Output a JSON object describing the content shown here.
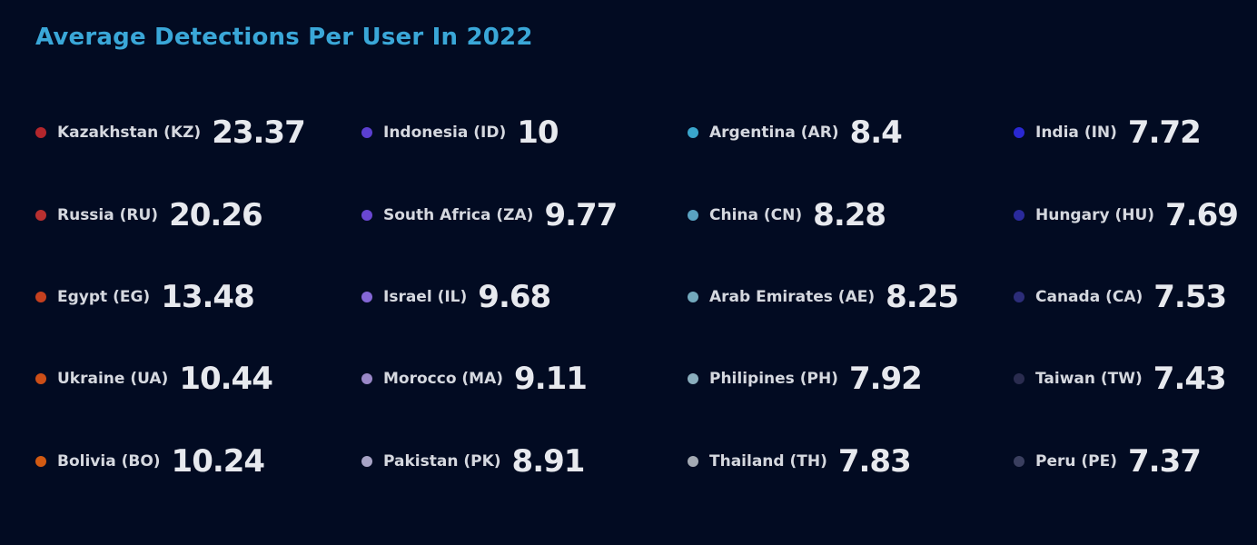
{
  "title": "Average Detections Per User In 2022",
  "chart_data": {
    "type": "table",
    "title": "Average Detections Per User In 2022",
    "entries": [
      {
        "label": "Kazakhstan (KZ)",
        "value": "23.37",
        "color": "#b3262c"
      },
      {
        "label": "Russia (RU)",
        "value": "20.26",
        "color": "#b83030"
      },
      {
        "label": "Egypt (EG)",
        "value": "13.48",
        "color": "#c5401f"
      },
      {
        "label": "Ukraine (UA)",
        "value": "10.44",
        "color": "#cc4e17"
      },
      {
        "label": "Bolivia (BO)",
        "value": "10.24",
        "color": "#d25a12"
      },
      {
        "label": "Indonesia (ID)",
        "value": "10",
        "color": "#5b3fd0"
      },
      {
        "label": "South Africa (ZA)",
        "value": "9.77",
        "color": "#6a47d2"
      },
      {
        "label": "Israel (IL)",
        "value": "9.68",
        "color": "#8467d6"
      },
      {
        "label": "Morocco (MA)",
        "value": "9.11",
        "color": "#9a88c8"
      },
      {
        "label": "Pakistan (PK)",
        "value": "8.91",
        "color": "#a8a4c6"
      },
      {
        "label": "Argentina (AR)",
        "value": "8.4",
        "color": "#3aa6cc"
      },
      {
        "label": "China (CN)",
        "value": "8.28",
        "color": "#5aa3c2"
      },
      {
        "label": "Arab Emirates (AE)",
        "value": "8.25",
        "color": "#73a9bd"
      },
      {
        "label": "Philipines (PH)",
        "value": "7.92",
        "color": "#8aaebd"
      },
      {
        "label": "Thailand (TH)",
        "value": "7.83",
        "color": "#a4aab3"
      },
      {
        "label": "India (IN)",
        "value": "7.72",
        "color": "#2a28d2"
      },
      {
        "label": "Hungary (HU)",
        "value": "7.69",
        "color": "#2a2a9c"
      },
      {
        "label": "Canada (CA)",
        "value": "7.53",
        "color": "#2c2d79"
      },
      {
        "label": "Taiwan (TW)",
        "value": "7.43",
        "color": "#2a2c4f"
      },
      {
        "label": "Peru (PE)",
        "value": "7.37",
        "color": "#3a3f5f"
      }
    ]
  }
}
